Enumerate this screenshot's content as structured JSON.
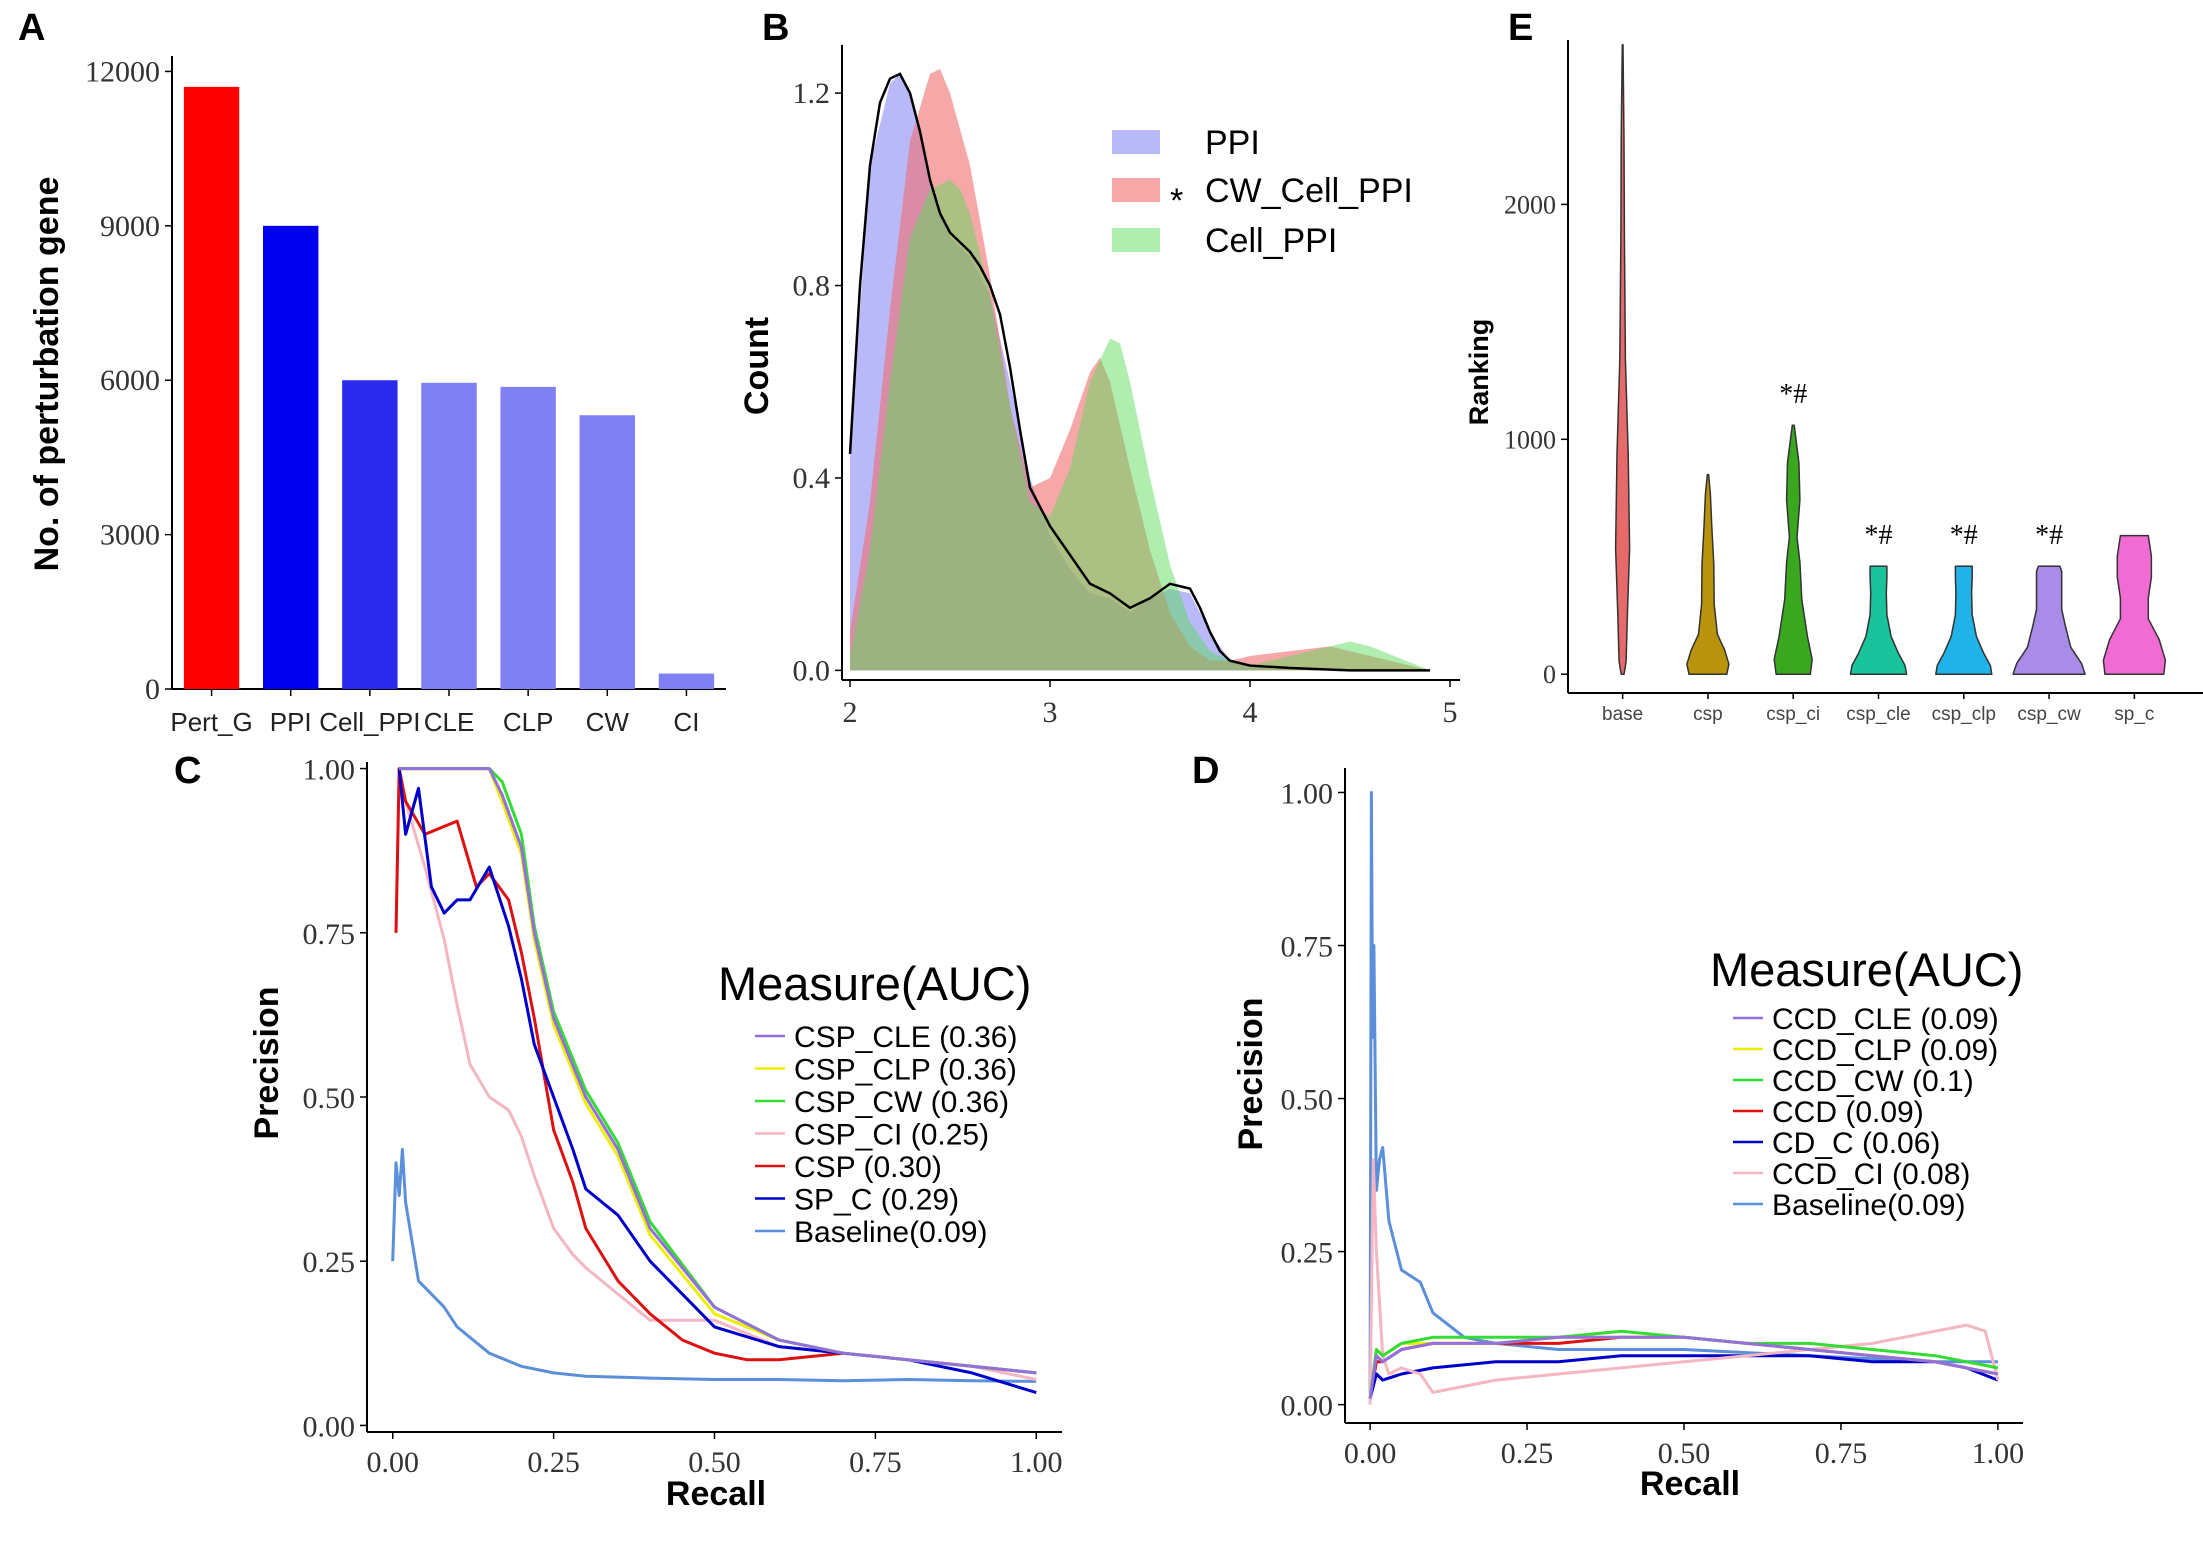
{
  "panel_labels": [
    "A",
    "B",
    "C",
    "D",
    "E"
  ],
  "colors": {
    "red": "#ff0000",
    "blue": "#0000ee",
    "blue2": "#2b2bee",
    "lightblue": "#8080f5"
  },
  "chart_data": [
    {
      "id": "A",
      "type": "bar",
      "title": "",
      "xlabel": "",
      "ylabel": "No. of perturbation gene",
      "categories": [
        "Pert_G",
        "PPI",
        "Cell_PPI",
        "CLE",
        "CLP",
        "CW",
        "CI"
      ],
      "values": [
        11700,
        9000,
        6000,
        5950,
        5870,
        5320,
        300
      ],
      "bar_colors": [
        "#ff0000",
        "#0000ee",
        "#2b2bee",
        "#8080f5",
        "#8080f5",
        "#8080f5",
        "#8080f5"
      ],
      "yticks": [
        0,
        3000,
        6000,
        9000,
        12000
      ],
      "yticklabels": [
        "0",
        "3000",
        "6000",
        "9000",
        "12000"
      ],
      "ylim": [
        0,
        12300
      ]
    },
    {
      "id": "B",
      "type": "area",
      "xlabel": "",
      "ylabel": "Count",
      "xlim": [
        1.96,
        5.05
      ],
      "ylim": [
        -0.02,
        1.3
      ],
      "xticks": [
        2,
        3,
        4,
        5
      ],
      "xticklabels": [
        "2",
        "3",
        "4",
        "5"
      ],
      "yticks": [
        0.0,
        0.4,
        0.8,
        1.2
      ],
      "yticklabels": [
        "0.0",
        "0.4",
        "0.8",
        "1.2"
      ],
      "legend": {
        "position": "top-right",
        "marker": "*",
        "entries": [
          "PPI",
          "CW_Cell_PPI",
          "Cell_PPI"
        ]
      },
      "series": [
        {
          "name": "PPI",
          "color": "rgba(128,128,245,0.55)",
          "x": [
            2.0,
            2.1,
            2.2,
            2.25,
            2.3,
            2.4,
            2.5,
            2.6,
            2.7,
            2.8,
            2.9,
            3.0,
            3.1,
            3.2,
            3.3,
            3.4,
            3.5,
            3.6,
            3.7,
            3.8,
            3.9,
            4.0,
            4.2,
            4.5,
            4.9
          ],
          "y": [
            0.44,
            1.05,
            1.22,
            1.24,
            1.2,
            1.02,
            0.9,
            0.86,
            0.78,
            0.6,
            0.4,
            0.28,
            0.21,
            0.16,
            0.15,
            0.12,
            0.15,
            0.17,
            0.16,
            0.08,
            0.02,
            0.01,
            0.0,
            0.0,
            0.0
          ]
        },
        {
          "name": "CW_Cell_PPI",
          "color": "rgba(240,110,110,0.6)",
          "x": [
            2.0,
            2.1,
            2.2,
            2.3,
            2.4,
            2.45,
            2.5,
            2.6,
            2.7,
            2.8,
            2.9,
            3.0,
            3.1,
            3.2,
            3.25,
            3.3,
            3.4,
            3.5,
            3.6,
            3.7,
            3.8,
            3.9,
            4.0,
            4.2,
            4.4,
            4.6,
            4.9
          ],
          "y": [
            0.08,
            0.35,
            0.75,
            1.1,
            1.24,
            1.25,
            1.2,
            1.05,
            0.82,
            0.55,
            0.38,
            0.4,
            0.5,
            0.62,
            0.65,
            0.6,
            0.42,
            0.25,
            0.12,
            0.05,
            0.02,
            0.02,
            0.03,
            0.04,
            0.05,
            0.03,
            0.0
          ]
        },
        {
          "name": "Cell_PPI",
          "color": "rgba(90,220,90,0.48)",
          "x": [
            2.0,
            2.1,
            2.2,
            2.3,
            2.4,
            2.5,
            2.55,
            2.6,
            2.7,
            2.8,
            2.9,
            3.0,
            3.1,
            3.2,
            3.3,
            3.35,
            3.4,
            3.5,
            3.6,
            3.7,
            3.8,
            3.9,
            4.0,
            4.2,
            4.4,
            4.5,
            4.6,
            4.9
          ],
          "y": [
            0.03,
            0.25,
            0.6,
            0.9,
            1.0,
            1.02,
            1.0,
            0.95,
            0.78,
            0.55,
            0.35,
            0.32,
            0.42,
            0.6,
            0.69,
            0.68,
            0.6,
            0.4,
            0.22,
            0.1,
            0.04,
            0.02,
            0.01,
            0.03,
            0.05,
            0.06,
            0.05,
            0.0
          ]
        }
      ],
      "kde_line": {
        "x": [
          2.0,
          2.05,
          2.1,
          2.15,
          2.2,
          2.25,
          2.3,
          2.35,
          2.4,
          2.45,
          2.5,
          2.55,
          2.6,
          2.65,
          2.7,
          2.75,
          2.8,
          2.85,
          2.9,
          3.0,
          3.1,
          3.2,
          3.3,
          3.4,
          3.5,
          3.6,
          3.7,
          3.75,
          3.8,
          3.85,
          3.9,
          4.0,
          4.2,
          4.5,
          4.9
        ],
        "y": [
          0.45,
          0.8,
          1.05,
          1.18,
          1.23,
          1.24,
          1.2,
          1.12,
          1.02,
          0.95,
          0.91,
          0.89,
          0.87,
          0.84,
          0.8,
          0.74,
          0.63,
          0.5,
          0.38,
          0.3,
          0.24,
          0.18,
          0.16,
          0.13,
          0.15,
          0.18,
          0.17,
          0.13,
          0.08,
          0.04,
          0.02,
          0.01,
          0.005,
          0.0,
          0.0
        ]
      }
    },
    {
      "id": "C",
      "type": "line",
      "xlabel": "Recall",
      "ylabel": "Precision",
      "xlim": [
        -0.04,
        1.04
      ],
      "ylim": [
        -0.01,
        1.01
      ],
      "xticks": [
        0,
        0.25,
        0.5,
        0.75,
        1.0
      ],
      "xticklabels": [
        "0.00",
        "0.25",
        "0.50",
        "0.75",
        "1.00"
      ],
      "yticks": [
        0,
        0.25,
        0.5,
        0.75,
        1.0
      ],
      "yticklabels": [
        "0.00",
        "0.25",
        "0.50",
        "0.75",
        "1.00"
      ],
      "legend": {
        "title": "Measure(AUC)",
        "position": "center-right"
      },
      "series": [
        {
          "name": "CSP_CLE (0.36)",
          "color": "#9370db",
          "x": [
            0.01,
            0.02,
            0.05,
            0.1,
            0.15,
            0.17,
            0.2,
            0.22,
            0.25,
            0.3,
            0.35,
            0.4,
            0.5,
            0.6,
            0.7,
            0.8,
            0.9,
            1.0
          ],
          "y": [
            1.0,
            1.0,
            1.0,
            1.0,
            1.0,
            0.96,
            0.88,
            0.75,
            0.62,
            0.5,
            0.42,
            0.3,
            0.18,
            0.13,
            0.11,
            0.1,
            0.09,
            0.08
          ]
        },
        {
          "name": "CSP_CLP (0.36)",
          "color": "#eeee00",
          "x": [
            0.01,
            0.02,
            0.05,
            0.1,
            0.15,
            0.17,
            0.2,
            0.22,
            0.25,
            0.3,
            0.35,
            0.4,
            0.5,
            0.6,
            0.7,
            0.8,
            0.9,
            1.0
          ],
          "y": [
            1.0,
            1.0,
            1.0,
            1.0,
            1.0,
            0.95,
            0.87,
            0.74,
            0.61,
            0.49,
            0.41,
            0.29,
            0.17,
            0.13,
            0.11,
            0.1,
            0.09,
            0.08
          ]
        },
        {
          "name": "CSP_CW (0.36)",
          "color": "#33dd33",
          "x": [
            0.01,
            0.02,
            0.05,
            0.1,
            0.15,
            0.17,
            0.2,
            0.22,
            0.25,
            0.3,
            0.35,
            0.4,
            0.5,
            0.6,
            0.7,
            0.8,
            0.9,
            1.0
          ],
          "y": [
            1.0,
            1.0,
            1.0,
            1.0,
            1.0,
            0.98,
            0.9,
            0.76,
            0.63,
            0.51,
            0.43,
            0.31,
            0.18,
            0.13,
            0.11,
            0.1,
            0.09,
            0.08
          ]
        },
        {
          "name": "CSP_CI (0.25)",
          "color": "#f4b6c2",
          "x": [
            0.005,
            0.01,
            0.02,
            0.05,
            0.08,
            0.1,
            0.12,
            0.15,
            0.18,
            0.2,
            0.22,
            0.25,
            0.28,
            0.3,
            0.35,
            0.4,
            0.5,
            0.6,
            0.7,
            0.8,
            0.9,
            1.0
          ],
          "y": [
            0.75,
            1.0,
            0.95,
            0.85,
            0.74,
            0.64,
            0.55,
            0.5,
            0.48,
            0.44,
            0.38,
            0.3,
            0.26,
            0.24,
            0.2,
            0.16,
            0.16,
            0.12,
            0.11,
            0.1,
            0.09,
            0.07
          ]
        },
        {
          "name": "CSP (0.30)",
          "color": "#dd1111",
          "x": [
            0.005,
            0.01,
            0.02,
            0.05,
            0.1,
            0.13,
            0.15,
            0.18,
            0.2,
            0.22,
            0.25,
            0.28,
            0.3,
            0.35,
            0.4,
            0.45,
            0.5,
            0.55,
            0.6,
            0.7,
            0.8,
            0.9,
            1.0
          ],
          "y": [
            0.75,
            1.0,
            0.95,
            0.9,
            0.92,
            0.82,
            0.84,
            0.8,
            0.72,
            0.62,
            0.45,
            0.37,
            0.3,
            0.22,
            0.17,
            0.13,
            0.11,
            0.1,
            0.1,
            0.11,
            0.1,
            0.09,
            0.08
          ]
        },
        {
          "name": "SP_C (0.29)",
          "color": "#0000cc",
          "x": [
            0.01,
            0.02,
            0.04,
            0.06,
            0.08,
            0.1,
            0.12,
            0.15,
            0.18,
            0.2,
            0.22,
            0.25,
            0.28,
            0.3,
            0.35,
            0.4,
            0.5,
            0.6,
            0.7,
            0.8,
            0.9,
            1.0
          ],
          "y": [
            1.0,
            0.9,
            0.97,
            0.82,
            0.78,
            0.8,
            0.8,
            0.85,
            0.76,
            0.68,
            0.58,
            0.5,
            0.42,
            0.36,
            0.32,
            0.25,
            0.15,
            0.12,
            0.11,
            0.1,
            0.08,
            0.05
          ]
        },
        {
          "name": "Baseline(0.09)",
          "color": "#5b8fd9",
          "x": [
            0.0,
            0.005,
            0.01,
            0.015,
            0.02,
            0.04,
            0.06,
            0.08,
            0.1,
            0.15,
            0.2,
            0.25,
            0.3,
            0.4,
            0.5,
            0.6,
            0.7,
            0.8,
            0.9,
            1.0
          ],
          "y": [
            0.25,
            0.4,
            0.35,
            0.42,
            0.34,
            0.22,
            0.2,
            0.18,
            0.15,
            0.11,
            0.09,
            0.08,
            0.075,
            0.072,
            0.07,
            0.07,
            0.068,
            0.07,
            0.068,
            0.067
          ]
        }
      ]
    },
    {
      "id": "D",
      "type": "line",
      "xlabel": "Recall",
      "ylabel": "Precision",
      "xlim": [
        -0.04,
        1.04
      ],
      "ylim": [
        -0.03,
        1.04
      ],
      "xticks": [
        0,
        0.25,
        0.5,
        0.75,
        1.0
      ],
      "xticklabels": [
        "0.00",
        "0.25",
        "0.50",
        "0.75",
        "1.00"
      ],
      "yticks": [
        0,
        0.25,
        0.5,
        0.75,
        1.0
      ],
      "yticklabels": [
        "0.00",
        "0.25",
        "0.50",
        "0.75",
        "1.00"
      ],
      "legend": {
        "title": "Measure(AUC)",
        "position": "top-right"
      },
      "series": [
        {
          "name": "CCD_CLE (0.09)",
          "color": "#9370db",
          "x": [
            0.0,
            0.01,
            0.02,
            0.05,
            0.1,
            0.2,
            0.3,
            0.4,
            0.5,
            0.6,
            0.7,
            0.8,
            0.9,
            1.0
          ],
          "y": [
            0.01,
            0.08,
            0.07,
            0.09,
            0.1,
            0.1,
            0.11,
            0.11,
            0.11,
            0.1,
            0.09,
            0.08,
            0.07,
            0.05
          ]
        },
        {
          "name": "CCD_CLP (0.09)",
          "color": "#eeee00",
          "x": [
            0.0,
            0.01,
            0.02,
            0.05,
            0.1,
            0.2,
            0.3,
            0.4,
            0.5,
            0.6,
            0.7,
            0.8,
            0.9,
            1.0
          ],
          "y": [
            0.01,
            0.09,
            0.08,
            0.1,
            0.1,
            0.1,
            0.11,
            0.11,
            0.11,
            0.1,
            0.09,
            0.08,
            0.07,
            0.05
          ]
        },
        {
          "name": "CCD_CW (0.1)",
          "color": "#33dd33",
          "x": [
            0.0,
            0.01,
            0.02,
            0.05,
            0.1,
            0.2,
            0.3,
            0.4,
            0.5,
            0.6,
            0.7,
            0.8,
            0.9,
            1.0
          ],
          "y": [
            0.01,
            0.09,
            0.08,
            0.1,
            0.11,
            0.11,
            0.11,
            0.12,
            0.11,
            0.1,
            0.1,
            0.09,
            0.08,
            0.06
          ]
        },
        {
          "name": "CCD (0.09)",
          "color": "#dd1111",
          "x": [
            0.0,
            0.01,
            0.02,
            0.05,
            0.1,
            0.2,
            0.3,
            0.4,
            0.5,
            0.6,
            0.7,
            0.8,
            0.9,
            1.0
          ],
          "y": [
            0.01,
            0.07,
            0.07,
            0.09,
            0.1,
            0.1,
            0.1,
            0.11,
            0.11,
            0.1,
            0.09,
            0.08,
            0.07,
            0.05
          ]
        },
        {
          "name": "CD_C (0.06)",
          "color": "#0000cc",
          "x": [
            0.0,
            0.01,
            0.02,
            0.05,
            0.1,
            0.2,
            0.3,
            0.4,
            0.5,
            0.6,
            0.7,
            0.8,
            0.9,
            0.95,
            1.0
          ],
          "y": [
            0.01,
            0.05,
            0.04,
            0.05,
            0.06,
            0.07,
            0.07,
            0.08,
            0.08,
            0.08,
            0.08,
            0.07,
            0.07,
            0.06,
            0.04
          ]
        },
        {
          "name": "CCD_CI (0.08)",
          "color": "#f4b6c2",
          "x": [
            0.0,
            0.005,
            0.01,
            0.02,
            0.03,
            0.05,
            0.08,
            0.1,
            0.2,
            0.3,
            0.4,
            0.5,
            0.6,
            0.7,
            0.8,
            0.9,
            0.95,
            0.98,
            1.0
          ],
          "y": [
            0.0,
            0.4,
            0.25,
            0.08,
            0.05,
            0.06,
            0.05,
            0.02,
            0.04,
            0.05,
            0.06,
            0.07,
            0.08,
            0.09,
            0.1,
            0.12,
            0.13,
            0.12,
            0.04
          ]
        },
        {
          "name": "Baseline(0.09)",
          "color": "#5b8fd9",
          "x": [
            0.0,
            0.002,
            0.004,
            0.006,
            0.01,
            0.015,
            0.02,
            0.03,
            0.05,
            0.08,
            0.1,
            0.15,
            0.2,
            0.3,
            0.5,
            0.7,
            0.9,
            1.0
          ],
          "y": [
            0.02,
            1.0,
            0.6,
            0.75,
            0.35,
            0.4,
            0.42,
            0.3,
            0.22,
            0.2,
            0.15,
            0.11,
            0.1,
            0.09,
            0.09,
            0.08,
            0.07,
            0.07
          ]
        }
      ]
    },
    {
      "id": "E",
      "type": "violin",
      "xlabel": "",
      "ylabel": "Ranking",
      "ylim": [
        -80,
        2700
      ],
      "yticks": [
        0,
        1000,
        2000
      ],
      "yticklabels": [
        "0",
        "1000",
        "2000"
      ],
      "categories": [
        "base",
        "csp",
        "csp_ci",
        "csp_cle",
        "csp_clp",
        "csp_cw",
        "sp_c"
      ],
      "colors": [
        "#e76a6a",
        "#b8930b",
        "#3aa81e",
        "#19c39c",
        "#1fb3e8",
        "#a98be8",
        "#f06bd3"
      ],
      "max_values": [
        2680,
        850,
        1060,
        460,
        460,
        460,
        590
      ],
      "annotations": [
        "",
        "",
        "*#",
        "*#",
        "*#",
        "*#",
        ""
      ]
    }
  ]
}
